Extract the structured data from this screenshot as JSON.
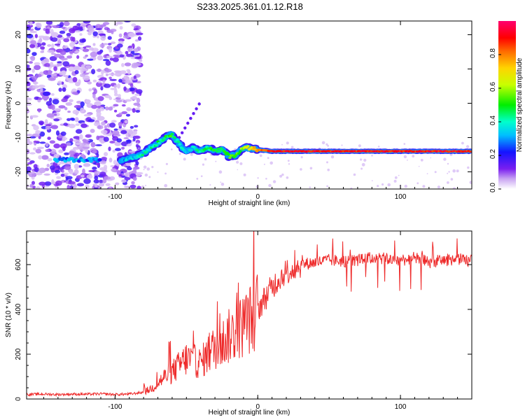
{
  "title": "S233.2025.361.01.12.R18",
  "chart_data": [
    {
      "type": "heatmap",
      "name": "spectrogram",
      "xlabel": "Height of straight line (km)",
      "ylabel": "Frequency (Hz)",
      "xlim": [
        -162,
        150
      ],
      "ylim": [
        -25,
        24
      ],
      "xticks": [
        -100,
        0,
        100
      ],
      "xtick_labels": [
        "-100",
        "0",
        "100"
      ],
      "yticks": [
        -20,
        -10,
        0,
        10,
        20
      ],
      "ytick_labels": [
        "-20",
        "-10",
        "0",
        "10",
        "20"
      ],
      "colorbar": {
        "label": "Normalized spectral amplitude",
        "range": [
          0,
          1
        ],
        "ticks": [
          0.0,
          0.2,
          0.4,
          0.6,
          0.8
        ],
        "tick_labels": [
          "0.0",
          "0.2",
          "0.4",
          "0.6",
          "0.8"
        ]
      },
      "ridge": {
        "x": [
          -95,
          -90,
          -85,
          -80,
          -75,
          -70,
          -65,
          -60,
          -55,
          -50,
          -45,
          -40,
          -35,
          -30,
          -25,
          -20,
          -15,
          -10,
          -5,
          0,
          10,
          20,
          40,
          60,
          80,
          100,
          120,
          150
        ],
        "freq": [
          -16.5,
          -16,
          -15.5,
          -14.5,
          -13,
          -11.5,
          -10,
          -9,
          -12,
          -14,
          -13,
          -14,
          -13,
          -14,
          -13.5,
          -15.5,
          -15,
          -13,
          -13,
          -13.5,
          -14,
          -14,
          -14,
          -14,
          -14,
          -14,
          -14,
          -14
        ],
        "amplitude": [
          0.3,
          0.35,
          0.35,
          0.4,
          0.4,
          0.45,
          0.45,
          0.5,
          0.4,
          0.35,
          0.4,
          0.4,
          0.45,
          0.5,
          0.45,
          0.55,
          0.5,
          0.6,
          0.7,
          0.8,
          0.9,
          0.9,
          0.9,
          0.9,
          0.9,
          0.9,
          0.9,
          0.9
        ]
      }
    },
    {
      "type": "line",
      "name": "snr",
      "xlabel": "Height of straight line (km)",
      "ylabel": "SNR (10 * v/v)",
      "xlim": [
        -162,
        150
      ],
      "ylim": [
        0,
        750
      ],
      "xticks": [
        -100,
        0,
        100
      ],
      "xtick_labels": [
        "-100",
        "0",
        "100"
      ],
      "yticks": [
        0,
        200,
        400,
        600
      ],
      "ytick_labels": [
        "0",
        "200",
        "400",
        "600"
      ],
      "color": "#ee2a2a",
      "series": [
        {
          "name": "SNR",
          "x": [
            -162,
            -150,
            -140,
            -130,
            -120,
            -110,
            -100,
            -90,
            -80,
            -75,
            -70,
            -65,
            -60,
            -55,
            -50,
            -45,
            -40,
            -35,
            -30,
            -25,
            -20,
            -15,
            -10,
            -5,
            0,
            5,
            10,
            15,
            20,
            25,
            30,
            40,
            50,
            60,
            70,
            80,
            90,
            100,
            110,
            120,
            130,
            140,
            150
          ],
          "y": [
            20,
            22,
            20,
            22,
            21,
            23,
            20,
            22,
            30,
            45,
            70,
            100,
            120,
            150,
            180,
            170,
            160,
            200,
            230,
            250,
            280,
            300,
            330,
            360,
            400,
            450,
            500,
            540,
            570,
            580,
            600,
            610,
            620,
            615,
            620,
            630,
            625,
            620,
            630,
            610,
            620,
            625,
            615
          ]
        }
      ]
    }
  ]
}
